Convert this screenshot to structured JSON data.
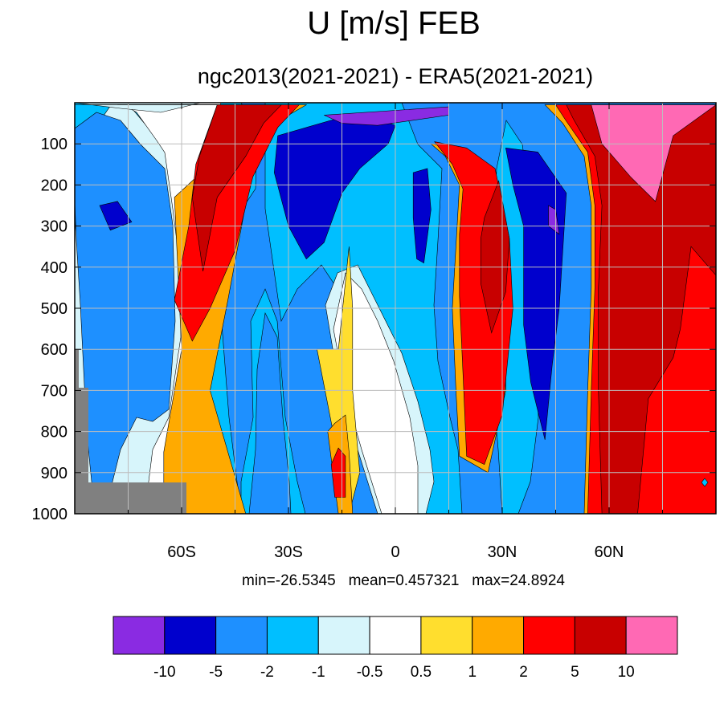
{
  "chart_data": {
    "type": "heatmap",
    "title": "U [m/s] FEB",
    "subtitle": "ngc2013(2021-2021) - ERA5(2021-2021)",
    "xlabel": "",
    "ylabel": "",
    "x_range": [
      -90,
      90
    ],
    "y_range": [
      0,
      1000
    ],
    "x_ticks": [
      {
        "value": -60,
        "label": "60S"
      },
      {
        "value": -30,
        "label": "30S"
      },
      {
        "value": 0,
        "label": "0"
      },
      {
        "value": 30,
        "label": "30N"
      },
      {
        "value": 60,
        "label": "60N"
      }
    ],
    "y_ticks": [
      {
        "value": 100,
        "label": "100"
      },
      {
        "value": 200,
        "label": "200"
      },
      {
        "value": 300,
        "label": "300"
      },
      {
        "value": 400,
        "label": "400"
      },
      {
        "value": 500,
        "label": "500"
      },
      {
        "value": 600,
        "label": "600"
      },
      {
        "value": 700,
        "label": "700"
      },
      {
        "value": 800,
        "label": "800"
      },
      {
        "value": 900,
        "label": "900"
      },
      {
        "value": 1000,
        "label": "1000"
      }
    ],
    "grid": true,
    "stats_text": "min=-26.5345   mean=0.457321   max=24.8924",
    "colorbar": {
      "colors": [
        "#8a2be2",
        "#0000cd",
        "#1e90ff",
        "#00bfff",
        "#d7f5fb",
        "#ffffff",
        "#ffde2e",
        "#ffaa00",
        "#ff0000",
        "#c80000",
        "#ff69b4"
      ],
      "labels": [
        "-10",
        "-5",
        "-2",
        "-1",
        "-0.5",
        "0.5",
        "1",
        "2",
        "5",
        "10"
      ]
    },
    "regions": [
      {
        "level": "pos2",
        "path": [
          [
            -90,
            5
          ],
          [
            -50,
            5
          ],
          [
            -52,
            150
          ],
          [
            -62,
            230
          ],
          [
            -60,
            600
          ],
          [
            -65,
            850
          ],
          [
            -65,
            1000
          ],
          [
            -42,
            1000
          ],
          [
            -52,
            700
          ],
          [
            -47,
            480
          ],
          [
            -41,
            200
          ],
          [
            -36,
            60
          ],
          [
            -25,
            5
          ]
        ]
      },
      {
        "level": "pos5",
        "path": [
          [
            -85,
            5
          ],
          [
            -50,
            5
          ],
          [
            -56,
            150
          ],
          [
            -58,
            300
          ],
          [
            -62,
            480
          ],
          [
            -57,
            580
          ],
          [
            -52,
            500
          ],
          [
            -45,
            360
          ],
          [
            -40,
            180
          ],
          [
            -33,
            60
          ],
          [
            -27,
            5
          ]
        ]
      },
      {
        "level": "pos10",
        "path": [
          [
            -78,
            5
          ],
          [
            -50,
            5
          ],
          [
            -55,
            130
          ],
          [
            -57,
            230
          ],
          [
            -54,
            410
          ],
          [
            -50,
            230
          ],
          [
            -42,
            130
          ],
          [
            -37,
            50
          ],
          [
            -32,
            5
          ]
        ]
      },
      {
        "level": "pos1",
        "path": [
          [
            -22,
            600
          ],
          [
            -13,
            1000
          ],
          [
            -10,
            900
          ],
          [
            -12,
            700
          ],
          [
            -12,
            500
          ],
          [
            -13,
            350
          ],
          [
            -16,
            600
          ]
        ]
      },
      {
        "level": "pos2",
        "path": [
          [
            -19,
            800
          ],
          [
            -16,
            1000
          ],
          [
            -12,
            1000
          ],
          [
            -13,
            850
          ],
          [
            -14,
            760
          ],
          [
            -17,
            780
          ]
        ]
      },
      {
        "level": "pos5",
        "path": [
          [
            -18,
            880
          ],
          [
            -17,
            960
          ],
          [
            -14,
            960
          ],
          [
            -14,
            860
          ],
          [
            -16,
            840
          ]
        ]
      },
      {
        "level": "pos2",
        "path": [
          [
            10,
            100
          ],
          [
            18,
            110
          ],
          [
            26,
            160
          ],
          [
            28,
            300
          ],
          [
            31,
            420
          ],
          [
            31,
            700
          ],
          [
            26,
            900
          ],
          [
            18,
            860
          ],
          [
            17,
            700
          ],
          [
            16,
            500
          ],
          [
            17,
            350
          ],
          [
            18,
            200
          ],
          [
            14,
            130
          ]
        ]
      },
      {
        "level": "pos5",
        "path": [
          [
            11,
            95
          ],
          [
            20,
            110
          ],
          [
            28,
            160
          ],
          [
            32,
            330
          ],
          [
            33,
            500
          ],
          [
            30,
            760
          ],
          [
            25,
            880
          ],
          [
            20,
            860
          ],
          [
            19,
            660
          ],
          [
            18,
            470
          ],
          [
            18,
            320
          ],
          [
            19,
            210
          ],
          [
            16,
            150
          ]
        ]
      },
      {
        "level": "pos10",
        "path": [
          [
            25,
            280
          ],
          [
            29,
            190
          ],
          [
            32,
            330
          ],
          [
            31,
            460
          ],
          [
            27,
            560
          ],
          [
            24,
            440
          ],
          [
            24,
            330
          ]
        ]
      },
      {
        "level": "pos2",
        "path": [
          [
            42,
            5
          ],
          [
            90,
            5
          ],
          [
            90,
            1000
          ],
          [
            53,
            1000
          ],
          [
            54,
            700
          ],
          [
            55,
            450
          ],
          [
            55,
            250
          ],
          [
            53,
            130
          ],
          [
            47,
            50
          ]
        ]
      },
      {
        "level": "pos5",
        "path": [
          [
            45,
            5
          ],
          [
            90,
            5
          ],
          [
            90,
            1000
          ],
          [
            54,
            1000
          ],
          [
            55,
            700
          ],
          [
            56,
            450
          ],
          [
            56,
            250
          ],
          [
            54,
            120
          ],
          [
            48,
            45
          ]
        ]
      },
      {
        "level": "pos10",
        "path": [
          [
            48,
            5
          ],
          [
            90,
            5
          ],
          [
            90,
            420
          ],
          [
            83,
            350
          ],
          [
            80,
            550
          ],
          [
            78,
            620
          ],
          [
            71,
            720
          ],
          [
            68,
            1000
          ],
          [
            58,
            1000
          ],
          [
            57,
            700
          ],
          [
            57,
            450
          ],
          [
            58,
            250
          ],
          [
            56,
            130
          ],
          [
            50,
            40
          ]
        ]
      },
      {
        "level": "pos20",
        "path": [
          [
            55,
            5
          ],
          [
            90,
            5
          ],
          [
            78,
            80
          ],
          [
            73,
            240
          ],
          [
            66,
            180
          ],
          [
            58,
            100
          ]
        ]
      },
      {
        "level": "neg5",
        "path": [
          [
            -33,
            80
          ],
          [
            -17,
            40
          ],
          [
            -8,
            30
          ],
          [
            0,
            55
          ],
          [
            -2,
            100
          ],
          [
            -10,
            160
          ],
          [
            -15,
            220
          ],
          [
            -20,
            340
          ],
          [
            -25,
            380
          ],
          [
            -30,
            300
          ],
          [
            -34,
            170
          ]
        ]
      },
      {
        "level": "neg5",
        "path": [
          [
            5,
            170
          ],
          [
            9,
            160
          ],
          [
            10,
            260
          ],
          [
            8,
            390
          ],
          [
            6,
            380
          ],
          [
            5,
            280
          ]
        ]
      },
      {
        "level": "neg5",
        "path": [
          [
            -83,
            250
          ],
          [
            -78,
            240
          ],
          [
            -74,
            290
          ],
          [
            -80,
            310
          ]
        ]
      },
      {
        "level": "neg5",
        "path": [
          [
            31,
            110
          ],
          [
            40,
            120
          ],
          [
            48,
            220
          ],
          [
            46,
            500
          ],
          [
            44,
            640
          ],
          [
            42,
            820
          ],
          [
            38,
            680
          ],
          [
            36,
            540
          ],
          [
            36,
            300
          ],
          [
            33,
            200
          ]
        ]
      },
      {
        "level": "neg10",
        "path": [
          [
            -20,
            30
          ],
          [
            15,
            10
          ],
          [
            15,
            30
          ],
          [
            -5,
            55
          ],
          [
            -15,
            50
          ]
        ]
      },
      {
        "level": "neg10",
        "path": [
          [
            43,
            250
          ],
          [
            45,
            260
          ],
          [
            46,
            320
          ],
          [
            43,
            300
          ]
        ]
      }
    ]
  }
}
